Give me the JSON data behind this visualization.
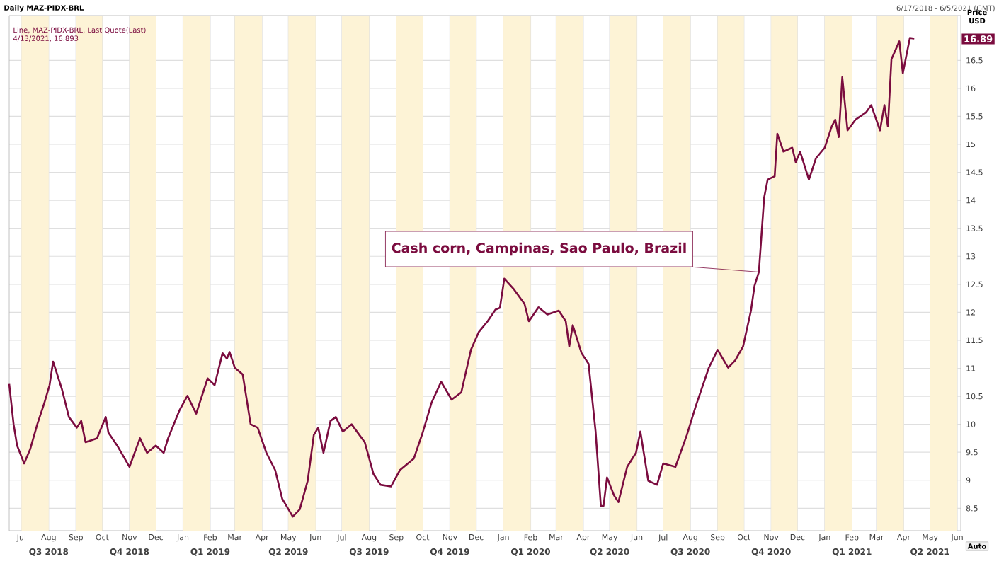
{
  "chart_data": {
    "type": "line",
    "title": "Daily MAZ-PIDX-BRL",
    "subtitle": "6/17/2018 - 6/5/2021 (GMT)",
    "ylabel": "Price USD",
    "annotations": [
      "Line, MAZ-PIDX-BRL, Last Quote(Last)",
      "4/13/2021, 16.893",
      "Auto",
      "16.89",
      {
        "text": "Cash corn, Campinas, Sao Paulo, Brazil",
        "x": "2020-10-18",
        "y": 12.72
      }
    ],
    "x": [
      "2018-06-17",
      "2018-06-22",
      "2018-06-26",
      "2018-07-04",
      "2018-07-11",
      "2018-07-19",
      "2018-07-27",
      "2018-08-02",
      "2018-08-06",
      "2018-08-16",
      "2018-08-24",
      "2018-09-02",
      "2018-09-07",
      "2018-09-12",
      "2018-09-25",
      "2018-10-05",
      "2018-10-08",
      "2018-10-18",
      "2018-11-01",
      "2018-11-13",
      "2018-11-21",
      "2018-12-01",
      "2018-12-10",
      "2018-12-15",
      "2018-12-28",
      "2019-01-06",
      "2019-01-16",
      "2019-01-29",
      "2019-02-06",
      "2019-02-15",
      "2019-02-20",
      "2019-02-23",
      "2019-03-01",
      "2019-03-10",
      "2019-03-19",
      "2019-03-27",
      "2019-04-06",
      "2019-04-16",
      "2019-04-24",
      "2019-05-06",
      "2019-05-14",
      "2019-05-23",
      "2019-05-30",
      "2019-06-04",
      "2019-06-10",
      "2019-06-18",
      "2019-06-24",
      "2019-07-02",
      "2019-07-12",
      "2019-07-27",
      "2019-08-06",
      "2019-08-14",
      "2019-08-26",
      "2019-09-05",
      "2019-09-21",
      "2019-10-01",
      "2019-10-11",
      "2019-10-22",
      "2019-11-03",
      "2019-11-14",
      "2019-11-25",
      "2019-12-04",
      "2019-12-14",
      "2019-12-23",
      "2019-12-28",
      "2020-01-02",
      "2020-01-13",
      "2020-01-25",
      "2020-01-30",
      "2020-02-10",
      "2020-02-20",
      "2020-03-04",
      "2020-03-12",
      "2020-03-16",
      "2020-03-20",
      "2020-03-30",
      "2020-04-07",
      "2020-04-15",
      "2020-04-21",
      "2020-04-24",
      "2020-04-28",
      "2020-05-06",
      "2020-05-11",
      "2020-05-21",
      "2020-05-31",
      "2020-06-05",
      "2020-06-14",
      "2020-06-24",
      "2020-07-01",
      "2020-07-15",
      "2020-07-28",
      "2020-08-07",
      "2020-08-22",
      "2020-09-01",
      "2020-09-13",
      "2020-09-21",
      "2020-09-30",
      "2020-10-09",
      "2020-10-13",
      "2020-10-18",
      "2020-10-24",
      "2020-10-28",
      "2020-11-05",
      "2020-11-08",
      "2020-11-15",
      "2020-11-25",
      "2020-11-29",
      "2020-12-04",
      "2020-12-14",
      "2020-12-22",
      "2021-01-01",
      "2021-01-09",
      "2021-01-13",
      "2021-01-17",
      "2021-01-21",
      "2021-01-27",
      "2021-02-05",
      "2021-02-17",
      "2021-02-23",
      "2021-03-05",
      "2021-03-10",
      "2021-03-14",
      "2021-03-18",
      "2021-03-27",
      "2021-03-31",
      "2021-04-08",
      "2021-04-13"
    ],
    "series": [
      {
        "color": "#7b0c3f",
        "values": [
          10.72,
          10.0,
          9.62,
          9.3,
          9.56,
          10.0,
          10.38,
          10.7,
          11.12,
          10.63,
          10.13,
          9.94,
          10.06,
          9.68,
          9.75,
          10.13,
          9.85,
          9.62,
          9.24,
          9.75,
          9.49,
          9.62,
          9.49,
          9.75,
          10.25,
          10.51,
          10.19,
          10.82,
          10.7,
          11.27,
          11.17,
          11.29,
          11.01,
          10.89,
          10.0,
          9.94,
          9.49,
          9.18,
          8.67,
          8.35,
          8.48,
          8.99,
          9.81,
          9.94,
          9.49,
          10.06,
          10.13,
          9.87,
          10.0,
          9.68,
          9.11,
          8.92,
          8.89,
          9.18,
          9.39,
          9.85,
          10.38,
          10.76,
          10.44,
          10.57,
          11.33,
          11.65,
          11.84,
          12.05,
          12.08,
          12.6,
          12.41,
          12.15,
          11.84,
          12.09,
          11.96,
          12.03,
          11.84,
          11.39,
          11.77,
          11.27,
          11.08,
          9.87,
          8.54,
          8.54,
          9.05,
          8.73,
          8.61,
          9.24,
          9.49,
          9.87,
          8.99,
          8.92,
          9.3,
          9.24,
          9.81,
          10.32,
          11.01,
          11.33,
          11.01,
          11.14,
          11.39,
          12.03,
          12.47,
          12.72,
          14.05,
          14.37,
          14.43,
          15.19,
          14.87,
          14.94,
          14.68,
          14.87,
          14.37,
          14.75,
          14.94,
          15.32,
          15.44,
          15.13,
          16.2,
          15.25,
          15.44,
          15.57,
          15.7,
          15.25,
          15.7,
          15.32,
          16.52,
          16.84,
          16.27,
          16.9,
          16.89
        ]
      }
    ],
    "xlim": [
      "2018-06-17",
      "2021-06-05"
    ],
    "ylim": [
      8.1,
      17.3
    ],
    "yticks": [
      8.5,
      9,
      9.5,
      10,
      10.5,
      11,
      11.5,
      12,
      12.5,
      13,
      13.5,
      14,
      14.5,
      15,
      15.5,
      16,
      16.5
    ],
    "xticks": [
      {
        "value": "2018-07-01",
        "label": "Jul"
      },
      {
        "value": "2018-08-01",
        "label": "Aug"
      },
      {
        "value": "2018-09-01",
        "label": "Sep"
      },
      {
        "value": "2018-10-01",
        "label": "Oct"
      },
      {
        "value": "2018-11-01",
        "label": "Nov"
      },
      {
        "value": "2018-12-01",
        "label": "Dec"
      },
      {
        "value": "2019-01-01",
        "label": "Jan"
      },
      {
        "value": "2019-02-01",
        "label": "Feb"
      },
      {
        "value": "2019-03-01",
        "label": "Mar"
      },
      {
        "value": "2019-04-01",
        "label": "Apr"
      },
      {
        "value": "2019-05-01",
        "label": "May"
      },
      {
        "value": "2019-06-01",
        "label": "Jun"
      },
      {
        "value": "2019-07-01",
        "label": "Jul"
      },
      {
        "value": "2019-08-01",
        "label": "Aug"
      },
      {
        "value": "2019-09-01",
        "label": "Sep"
      },
      {
        "value": "2019-10-01",
        "label": "Oct"
      },
      {
        "value": "2019-11-01",
        "label": "Nov"
      },
      {
        "value": "2019-12-01",
        "label": "Dec"
      },
      {
        "value": "2020-01-01",
        "label": "Jan"
      },
      {
        "value": "2020-02-01",
        "label": "Feb"
      },
      {
        "value": "2020-03-01",
        "label": "Mar"
      },
      {
        "value": "2020-04-01",
        "label": "Apr"
      },
      {
        "value": "2020-05-01",
        "label": "May"
      },
      {
        "value": "2020-06-01",
        "label": "Jun"
      },
      {
        "value": "2020-07-01",
        "label": "Jul"
      },
      {
        "value": "2020-08-01",
        "label": "Aug"
      },
      {
        "value": "2020-09-01",
        "label": "Sep"
      },
      {
        "value": "2020-10-01",
        "label": "Oct"
      },
      {
        "value": "2020-11-01",
        "label": "Nov"
      },
      {
        "value": "2020-12-01",
        "label": "Dec"
      },
      {
        "value": "2021-01-01",
        "label": "Jan"
      },
      {
        "value": "2021-02-01",
        "label": "Feb"
      },
      {
        "value": "2021-03-01",
        "label": "Mar"
      },
      {
        "value": "2021-04-01",
        "label": "Apr"
      },
      {
        "value": "2021-05-01",
        "label": "May"
      },
      {
        "value": "2021-06-01",
        "label": "Jun"
      }
    ],
    "x2lim": [
      "2018-06-17",
      "2021-06-05"
    ],
    "x2ticks": [
      {
        "value": "2018-08-01",
        "label": "Q3 2018"
      },
      {
        "value": "2018-11-01",
        "label": "Q4 2018"
      },
      {
        "value": "2019-02-01",
        "label": "Q1 2019"
      },
      {
        "value": "2019-05-01",
        "label": "Q2 2019"
      },
      {
        "value": "2019-08-01",
        "label": "Q3 2019"
      },
      {
        "value": "2019-11-01",
        "label": "Q4 2019"
      },
      {
        "value": "2020-02-01",
        "label": "Q1 2020"
      },
      {
        "value": "2020-05-01",
        "label": "Q2 2020"
      },
      {
        "value": "2020-08-01",
        "label": "Q3 2020"
      },
      {
        "value": "2020-11-01",
        "label": "Q4 2020"
      },
      {
        "value": "2021-02-01",
        "label": "Q1 2021"
      },
      {
        "value": "2021-05-01",
        "label": "Q2 2021"
      }
    ],
    "bands": [
      {
        "axis": "x",
        "from": "2018-07-01",
        "to": "2018-08-01",
        "color": "#fdf3d6"
      },
      {
        "axis": "x",
        "from": "2018-09-01",
        "to": "2018-10-01",
        "color": "#fdf3d6"
      },
      {
        "axis": "x",
        "from": "2018-11-01",
        "to": "2018-12-01",
        "color": "#fdf3d6"
      },
      {
        "axis": "x",
        "from": "2019-01-01",
        "to": "2019-02-01",
        "color": "#fdf3d6"
      },
      {
        "axis": "x",
        "from": "2019-03-01",
        "to": "2019-04-01",
        "color": "#fdf3d6"
      },
      {
        "axis": "x",
        "from": "2019-05-01",
        "to": "2019-06-01",
        "color": "#fdf3d6"
      },
      {
        "axis": "x",
        "from": "2019-07-01",
        "to": "2019-08-01",
        "color": "#fdf3d6"
      },
      {
        "axis": "x",
        "from": "2019-09-01",
        "to": "2019-10-01",
        "color": "#fdf3d6"
      },
      {
        "axis": "x",
        "from": "2019-11-01",
        "to": "2019-12-01",
        "color": "#fdf3d6"
      },
      {
        "axis": "x",
        "from": "2020-01-01",
        "to": "2020-02-01",
        "color": "#fdf3d6"
      },
      {
        "axis": "x",
        "from": "2020-03-01",
        "to": "2020-04-01",
        "color": "#fdf3d6"
      },
      {
        "axis": "x",
        "from": "2020-05-01",
        "to": "2020-06-01",
        "color": "#fdf3d6"
      },
      {
        "axis": "x",
        "from": "2020-07-01",
        "to": "2020-08-01",
        "color": "#fdf3d6"
      },
      {
        "axis": "x",
        "from": "2020-09-01",
        "to": "2020-10-01",
        "color": "#fdf3d6"
      },
      {
        "axis": "x",
        "from": "2020-11-01",
        "to": "2020-12-01",
        "color": "#fdf3d6"
      },
      {
        "axis": "x",
        "from": "2021-01-01",
        "to": "2021-02-01",
        "color": "#fdf3d6"
      },
      {
        "axis": "x",
        "from": "2021-03-01",
        "to": "2021-04-01",
        "color": "#fdf3d6"
      },
      {
        "axis": "x",
        "from": "2021-05-01",
        "to": "2021-06-01",
        "color": "#fdf3d6"
      }
    ],
    "grid": true,
    "marker": "none",
    "line_style": "solid"
  }
}
